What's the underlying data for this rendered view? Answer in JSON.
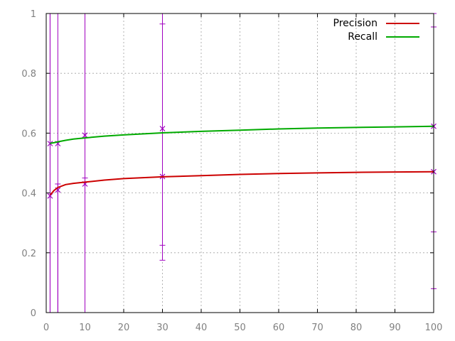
{
  "chart_data": {
    "type": "line",
    "title": "",
    "xlabel": "",
    "ylabel": "",
    "xlim": [
      0,
      100
    ],
    "ylim": [
      0,
      1
    ],
    "grid": true,
    "legend_position": "top-right",
    "x_ticks": [
      "0",
      "10",
      "20",
      "30",
      "40",
      "50",
      "60",
      "70",
      "80",
      "90",
      "100"
    ],
    "y_ticks": [
      "0",
      "0.2",
      "0.4",
      "0.6",
      "0.8",
      "1"
    ],
    "tick_label_color": "#808080",
    "grid_color": "#a0a0a0",
    "errorbar_color": "#a000c0",
    "series": [
      {
        "name": "Precision",
        "color": "#cc0000",
        "x": [
          1,
          2,
          3,
          5,
          7,
          10,
          15,
          20,
          30,
          40,
          50,
          60,
          70,
          80,
          90,
          100
        ],
        "y": [
          0.393,
          0.408,
          0.418,
          0.428,
          0.432,
          0.436,
          0.443,
          0.448,
          0.454,
          0.458,
          0.462,
          0.465,
          0.467,
          0.469,
          0.47,
          0.471
        ]
      },
      {
        "name": "Recall",
        "color": "#00aa00",
        "x": [
          1,
          2,
          3,
          5,
          7,
          10,
          15,
          20,
          30,
          40,
          50,
          60,
          70,
          80,
          90,
          100
        ],
        "y": [
          0.566,
          0.568,
          0.571,
          0.576,
          0.58,
          0.584,
          0.59,
          0.594,
          0.601,
          0.606,
          0.61,
          0.614,
          0.617,
          0.619,
          0.621,
          0.623
        ]
      }
    ],
    "error_bars": [
      {
        "x": 1,
        "y": 0.565,
        "low": 0,
        "high": 1
      },
      {
        "x": 1,
        "y": 0.39,
        "low": 0,
        "high": 1
      },
      {
        "x": 3,
        "y": 0.565,
        "low": 0,
        "high": 1
      },
      {
        "x": 3,
        "y": 0.41,
        "low": 0,
        "high": 0.43
      },
      {
        "x": 10,
        "y": 0.593,
        "low": 0,
        "high": 1
      },
      {
        "x": 10,
        "y": 0.43,
        "low": 0,
        "high": 0.45
      },
      {
        "x": 30,
        "y": 0.615,
        "low": 0.175,
        "high": 1
      },
      {
        "x": 30,
        "y": 0.455,
        "low": 0.225,
        "high": 0.965
      },
      {
        "x": 100,
        "y": 0.623,
        "low": 0.08,
        "high": 1
      },
      {
        "x": 100,
        "y": 0.471,
        "low": 0.27,
        "high": 0.955
      }
    ]
  }
}
